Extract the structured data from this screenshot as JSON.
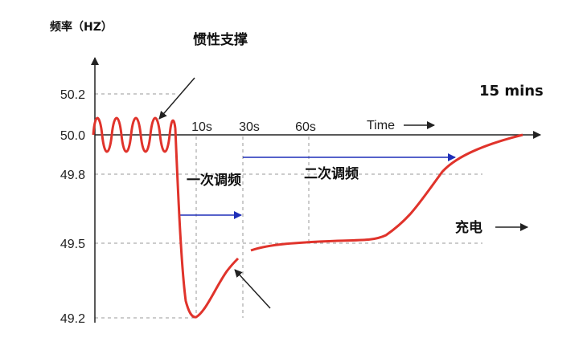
{
  "chart_data": {
    "type": "line",
    "ylabel": "频率（HZ）",
    "y_ticks": [
      "50.2",
      "50.0",
      "49.8",
      "49.5",
      "49.2"
    ],
    "x_ticks": [
      "10s",
      "30s",
      "60s"
    ],
    "x_axis_label": "Time",
    "time_end_label": "15 mins",
    "annotations": {
      "inertia": "惯性支撑",
      "primary": "一次调频",
      "secondary": "二次调频",
      "charging": "充电"
    },
    "series": [
      {
        "color": "#e0332b",
        "points": [
          [
            "0s",
            50.0
          ],
          [
            "oscillation",
            50.05
          ],
          [
            "oscillation",
            49.95
          ],
          [
            "before 10s",
            50.0
          ],
          [
            "~10s",
            49.5
          ],
          [
            "~12s",
            49.2
          ],
          [
            "~20s",
            49.35
          ],
          [
            "30s",
            49.45
          ],
          [
            "60s",
            49.5
          ],
          [
            "~100s",
            49.52
          ],
          [
            "charging",
            49.8
          ],
          [
            "15 mins",
            50.0
          ]
        ]
      }
    ],
    "colors": {
      "curve": "#e0332b",
      "arrow": "#1f2fb8",
      "grid": "#9a9a9a",
      "axis": "#222222"
    }
  }
}
